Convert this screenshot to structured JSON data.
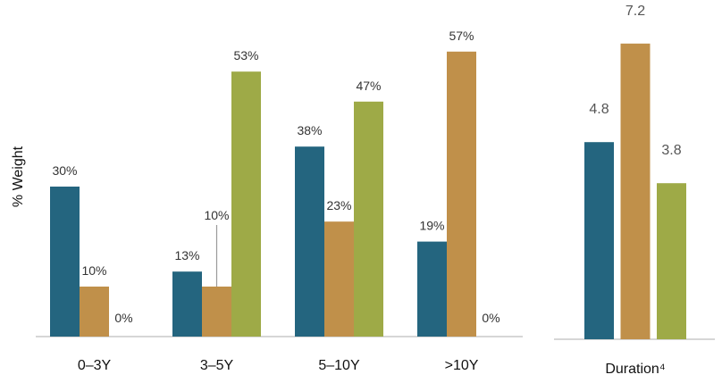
{
  "colors": {
    "teal": "#24657f",
    "tan": "#c0904a",
    "olive": "#9eaa47",
    "axis": "#bdbdbd"
  },
  "chart_data": [
    {
      "type": "bar",
      "ylabel": "% Weight",
      "categories": [
        "0–3Y",
        "3–5Y",
        "5–10Y",
        ">10Y"
      ],
      "ylim": [
        0,
        60
      ],
      "series": [
        {
          "values": [
            30,
            13,
            38,
            19
          ],
          "labels": [
            "30%",
            "13%",
            "38%",
            "19%"
          ]
        },
        {
          "values": [
            10,
            10,
            23,
            57
          ],
          "labels": [
            "10%",
            "10%",
            "23%",
            "57%"
          ]
        },
        {
          "values": [
            0,
            53,
            47,
            0
          ],
          "labels": [
            "0%",
            "53%",
            "47%",
            "0%"
          ]
        }
      ]
    },
    {
      "type": "bar",
      "categories": [
        "Duration⁴"
      ],
      "ylim": [
        0,
        8
      ],
      "series": [
        {
          "values": [
            4.8
          ],
          "labels": [
            "4.8"
          ]
        },
        {
          "values": [
            7.2
          ],
          "labels": [
            "7.2"
          ]
        },
        {
          "values": [
            3.8
          ],
          "labels": [
            "3.8"
          ]
        }
      ]
    }
  ]
}
